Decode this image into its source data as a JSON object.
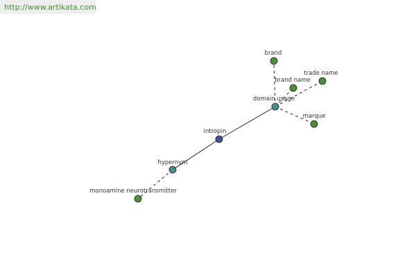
{
  "header": {
    "url": "http://www.artikata.com"
  },
  "nodes": [
    {
      "label": "intropin"
    },
    {
      "label": "domain usage"
    },
    {
      "label": "hypernym"
    },
    {
      "label": "monoamine neurotransmitter"
    },
    {
      "label": "brand"
    },
    {
      "label": "brand name"
    },
    {
      "label": "trade name"
    },
    {
      "label": "marque"
    }
  ]
}
